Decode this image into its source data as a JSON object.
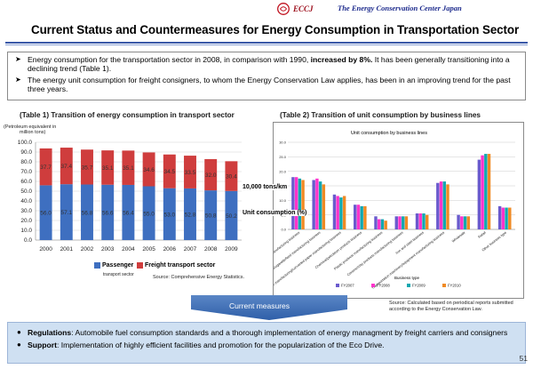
{
  "header": {
    "org_short": "ECCJ",
    "org_name": "The Energy Conservation Center Japan",
    "title": "Current Status and Countermeasures for Energy Consumption in Transportation Sector"
  },
  "summary": {
    "bullet1_pre": "Energy consumption for the transportation sector in 2008, in comparison with 1990, ",
    "bullet1_bold": "increased by 8%.",
    "bullet1_post": " It has been generally transitioning into a declining trend (Table 1).",
    "bullet2": "The energy unit consumption for freight consigners, to whom the Energy Conservation Law applies, has been in an improving trend for the past three years."
  },
  "table1": {
    "heading": "(Table 1) Transition of energy consumption in transport sector",
    "unit_label_1": "(Petroleum equivalent in",
    "unit_label_2": "million tons)",
    "legend_passenger": "Passenger",
    "legend_passenger_sub": "transport sector",
    "legend_freight": "Freight transport sector",
    "source": "Source: Comprehensive Energy Statistics.",
    "colors": {
      "passenger": "#3e6fc0",
      "freight": "#cf3d3d"
    }
  },
  "table2": {
    "heading": "(Table 2) Transition of unit consumption by business lines",
    "chart_title": "Unit consumption by business lines",
    "overlay_label1": "10,000 tons/km",
    "overlay_label2": "Unit consumption (%)",
    "xlabel": "Business type",
    "source": "Source: Calculated based on periodical reports submitted according to the Energy Conservation Law.",
    "colors": [
      "#6a5acd",
      "#ff33cc",
      "#12a8b0",
      "#f08a24"
    ]
  },
  "chart_data": [
    {
      "type": "bar",
      "stacked": true,
      "categories": [
        "2000",
        "2001",
        "2002",
        "2003",
        "2004",
        "2005",
        "2006",
        "2007",
        "2008",
        "2009"
      ],
      "series": [
        {
          "name": "Passenger transport sector",
          "values": [
            56.0,
            57.1,
            56.8,
            56.6,
            56.4,
            55.0,
            53.0,
            52.8,
            50.8,
            50.2
          ]
        },
        {
          "name": "Freight transport sector",
          "values": [
            37.7,
            37.4,
            35.7,
            35.1,
            35.1,
            34.6,
            34.5,
            33.5,
            32.0,
            30.4
          ]
        }
      ],
      "yticks": [
        "0.0",
        "10.0",
        "20.0",
        "30.0",
        "40.0",
        "50.0",
        "60.0",
        "70.0",
        "80.0",
        "90.0",
        "100.0"
      ],
      "ylim": [
        0,
        100
      ],
      "grid": true
    },
    {
      "type": "bar",
      "categories": [
        "Food/food manufacturing business",
        "Beverage/food/cigarette/feed manufacturing business",
        "Pulp/paper manufacturing/converted paper manufacturing business",
        "Chemical/petroleum products business",
        "Plastic products manufacturing business",
        "Ceramic/clay products manufacturing business",
        "Iron and steel business",
        "Transportation machinery/equipment manufacturing business",
        "Wholesale",
        "Retail",
        "Other business type"
      ],
      "series": [
        {
          "name": "FY2007",
          "values": [
            18,
            17,
            12,
            8.5,
            4.5,
            4.5,
            5.5,
            16,
            5,
            24,
            8
          ]
        },
        {
          "name": "FY2008",
          "values": [
            18,
            17.5,
            11.5,
            8.5,
            3.5,
            4.5,
            5.5,
            16.5,
            4.5,
            25.5,
            7.5
          ]
        },
        {
          "name": "FY2009",
          "values": [
            17.5,
            16.5,
            11,
            8,
            3.5,
            4.5,
            5.5,
            16.5,
            4.5,
            26,
            7.5
          ]
        },
        {
          "name": "FY2010",
          "values": [
            17,
            15.5,
            11.5,
            8,
            3,
            4.5,
            5,
            15.5,
            4.5,
            26,
            7.5
          ]
        }
      ],
      "yticks": [
        "0.0",
        "5.0",
        "10.0",
        "15.0",
        "20.0",
        "25.0",
        "30.0"
      ],
      "ylim": [
        0,
        30
      ],
      "legend": "bottom"
    }
  ],
  "measures": {
    "label": "Current measures",
    "item1_bold": "Regulations",
    "item1_text": ": Automobile fuel consumption standards and a thorough implementation of energy managment by freight carriers and consigners",
    "item2_bold": "Support",
    "item2_text": ": Implementation of highly efficient facilities and promotion for the popularization of the Eco Drive."
  },
  "page_number": "51"
}
